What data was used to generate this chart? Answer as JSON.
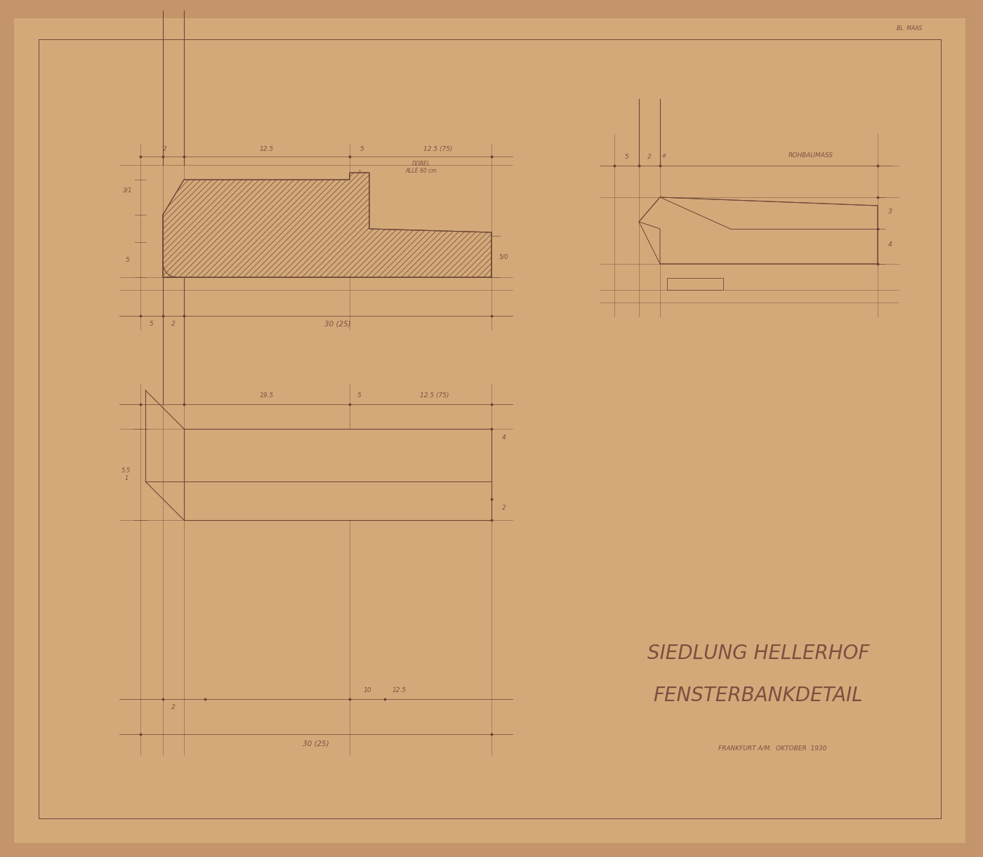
{
  "bg_color": "#C4956A",
  "paper_color": "#D4A97A",
  "line_color": "#6B4535",
  "dim_color": "#7B5040",
  "title1": "SIEDLUNG HELLERHOF",
  "title2": "FENSTERBANKDETAIL",
  "subtitle": "FRANKFURT A/M.  OKTOBER  1930",
  "top_right_label": "BL. MAAS",
  "hatch_color": "#B8845A"
}
